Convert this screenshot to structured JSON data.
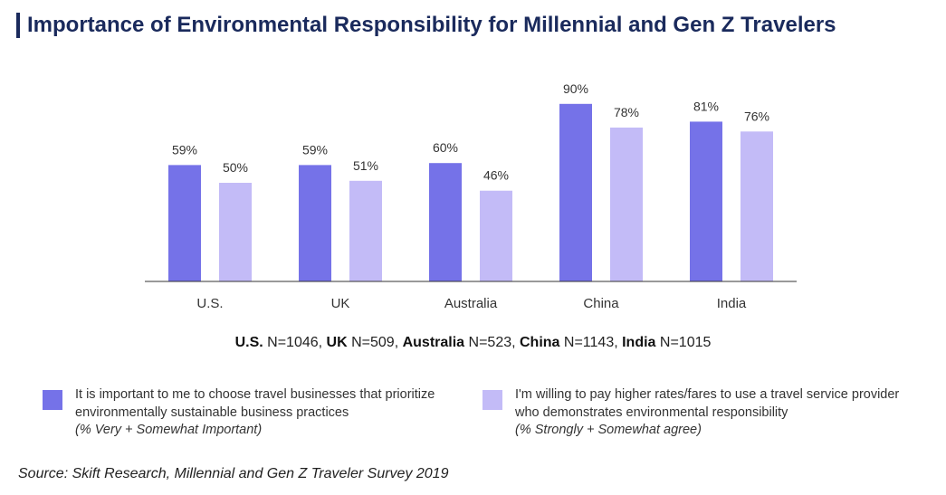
{
  "chart_data": {
    "type": "bar",
    "title": "Importance of Environmental Responsibility for Millennial and Gen Z Travelers",
    "categories": [
      "U.S.",
      "UK",
      "Australia",
      "China",
      "India"
    ],
    "series": [
      {
        "name": "It is important to me to choose travel businesses that prioritize environmentally sustainable business practices",
        "note": "(% Very + Somewhat Important)",
        "color": "#7572e8",
        "values": [
          59,
          59,
          60,
          90,
          81
        ],
        "labels": [
          "59%",
          "59%",
          "60%",
          "90%",
          "81%"
        ]
      },
      {
        "name": "I'm willing to pay higher rates/fares to use a travel service provider who demonstrates environmental responsibility",
        "note": "(% Strongly + Somewhat agree)",
        "color": "#c3bbf7",
        "values": [
          50,
          51,
          46,
          78,
          76
        ],
        "labels": [
          "50%",
          "51%",
          "46%",
          "78%",
          "76%"
        ]
      }
    ],
    "ylim": [
      0,
      100
    ],
    "xlabel": "",
    "ylabel": "",
    "grid": false,
    "legend": "bottom"
  },
  "sample_sizes": [
    {
      "country": "U.S.",
      "n": "N=1046",
      "sep": ", "
    },
    {
      "country": "UK",
      "n": "N=509",
      "sep": ", "
    },
    {
      "country": "Australia",
      "n": "N=523",
      "sep": ", "
    },
    {
      "country": "China",
      "n": "N=1143",
      "sep": ", "
    },
    {
      "country": "India",
      "n": "N=1015",
      "sep": ""
    }
  ],
  "source": "Source: Skift Research, Millennial and Gen Z Traveler Survey 2019",
  "colors": {
    "title": "#1a2a5c",
    "axis": "#333333"
  }
}
